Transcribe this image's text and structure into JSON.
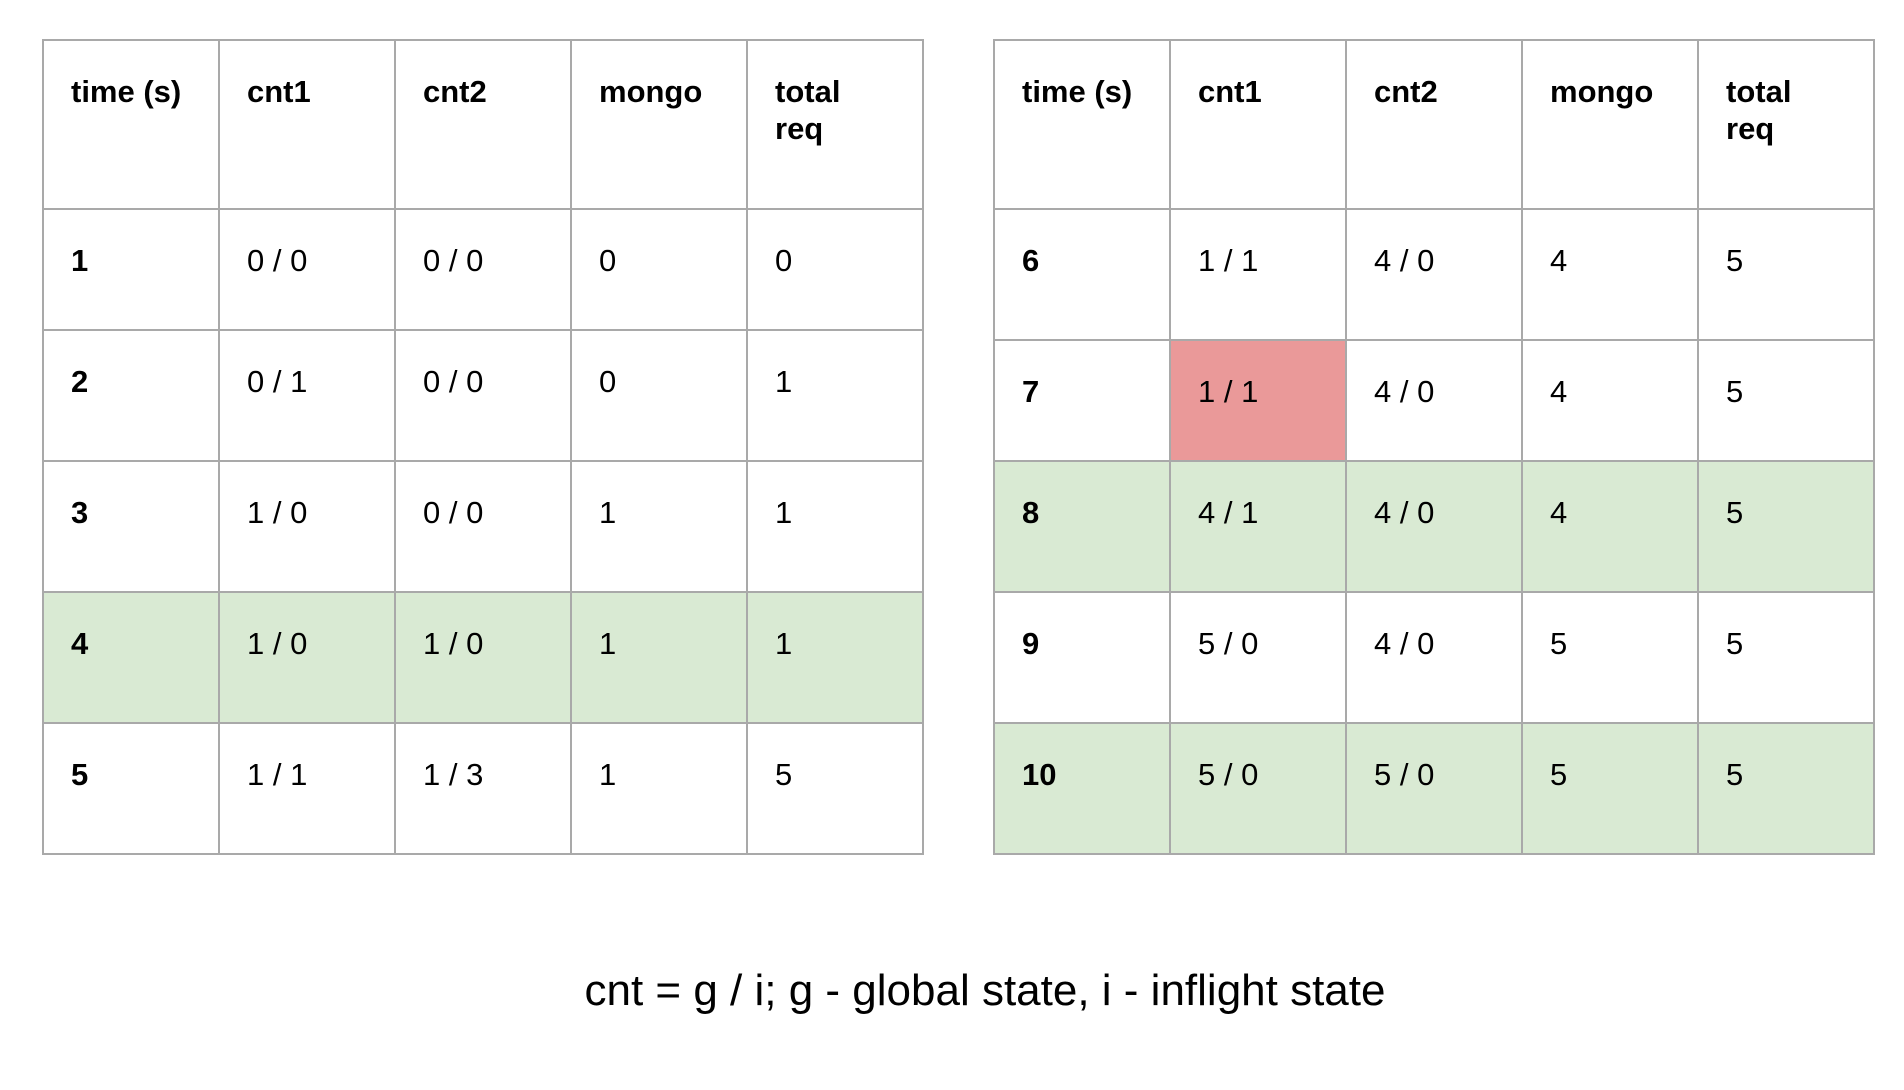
{
  "colors": {
    "grid": "#a9a9a9",
    "green_row": "#d9ead3",
    "red_cell": "#ea9999"
  },
  "tables": [
    {
      "headers": [
        "time (s)",
        "cnt1",
        "cnt2",
        "mongo",
        "total req"
      ],
      "rows": [
        {
          "time": "1",
          "cnt1": "0 / 0",
          "cnt2": "0 / 0",
          "mongo": "0",
          "total": "0"
        },
        {
          "time": "2",
          "cnt1": "0 / 1",
          "cnt2": "0 / 0",
          "mongo": "0",
          "total": "1"
        },
        {
          "time": "3",
          "cnt1": "1 / 0",
          "cnt2": "0 / 0",
          "mongo": "1",
          "total": "1"
        },
        {
          "time": "4",
          "cnt1": "1 / 0",
          "cnt2": "1 / 0",
          "mongo": "1",
          "total": "1",
          "highlight": "green"
        },
        {
          "time": "5",
          "cnt1": "1 / 1",
          "cnt2": "1 / 3",
          "mongo": "1",
          "total": "5"
        }
      ]
    },
    {
      "headers": [
        "time (s)",
        "cnt1",
        "cnt2",
        "mongo",
        "total req"
      ],
      "rows": [
        {
          "time": "6",
          "cnt1": "1 / 1",
          "cnt2": "4 / 0",
          "mongo": "4",
          "total": "5"
        },
        {
          "time": "7",
          "cnt1": "1 / 1",
          "cnt2": "4 / 0",
          "mongo": "4",
          "total": "5",
          "cell_highlight": {
            "column": "cnt1",
            "color": "red"
          }
        },
        {
          "time": "8",
          "cnt1": "4 / 1",
          "cnt2": "4 / 0",
          "mongo": "4",
          "total": "5",
          "highlight": "green"
        },
        {
          "time": "9",
          "cnt1": "5 / 0",
          "cnt2": "4 / 0",
          "mongo": "5",
          "total": "5"
        },
        {
          "time": "10",
          "cnt1": "5 / 0",
          "cnt2": "5 / 0",
          "mongo": "5",
          "total": "5",
          "highlight": "green"
        }
      ]
    }
  ],
  "caption": "cnt = g / i; g - global state, i - inflight state"
}
